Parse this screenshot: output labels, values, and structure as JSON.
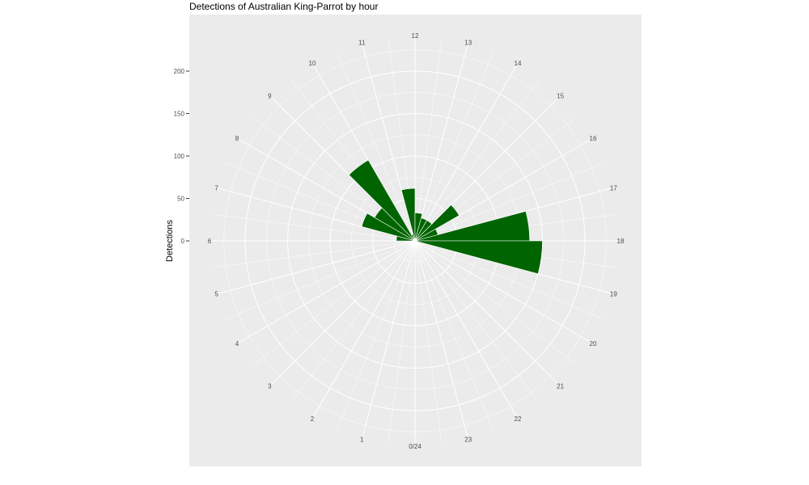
{
  "chart_data": {
    "type": "bar",
    "coord": "polar",
    "title": "Detections of Australian King-Parrot by hour",
    "xlabel": "",
    "ylabel": "Detections",
    "categories": [
      "0/24",
      "1",
      "2",
      "3",
      "4",
      "5",
      "6",
      "7",
      "8",
      "9",
      "10",
      "11",
      "12",
      "13",
      "14",
      "15",
      "16",
      "17",
      "18",
      "19",
      "20",
      "21",
      "22",
      "23"
    ],
    "series": [
      {
        "values": [
          0,
          0,
          0,
          0,
          0,
          0,
          22,
          65,
          55,
          110,
          8,
          62,
          33,
          28,
          28,
          60,
          28,
          135,
          150,
          0,
          0,
          0,
          0,
          0
        ]
      }
    ],
    "ylim": [
      0,
      240
    ],
    "yticks": [
      0,
      50,
      100,
      150,
      200
    ],
    "ytick_labels": [
      "0",
      "50",
      "100",
      "150",
      "200"
    ],
    "fill_color": "#006400",
    "panel_background": "#ebebeb",
    "grid_color": "#ffffff",
    "grid": true,
    "legend": "none"
  }
}
